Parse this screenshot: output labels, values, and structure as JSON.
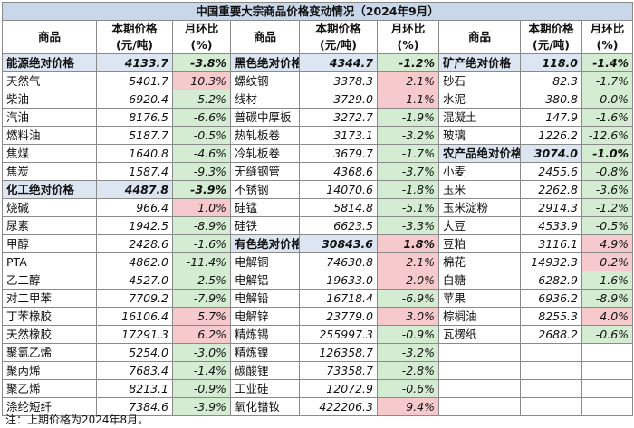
{
  "title": "中国重要大宗商品价格变动情况（2024年9月）",
  "headers": {
    "name": "商品",
    "price_line1": "本期价格",
    "price_line2": "(元/吨)",
    "mom_line1": "月环比",
    "mom_line2": "(%)"
  },
  "note": "注：上期价格为2024年8月。",
  "colors": {
    "title_bg": "#c9d7ea",
    "group_bg": "#dce6f2",
    "up_bg": "#f6c9cc",
    "down_bg": "#d3ecd2"
  },
  "rows": [
    [
      {
        "n": "能源绝对价格",
        "v": "4133.7",
        "c": "-3.8%",
        "g": true
      },
      {
        "n": "黑色绝对价格",
        "v": "4344.7",
        "c": "-1.2%",
        "g": true
      },
      {
        "n": "矿产绝对价格",
        "v": "118.0",
        "c": "-1.4%",
        "g": true
      }
    ],
    [
      {
        "n": "天然气",
        "v": "5401.7",
        "c": "10.3%"
      },
      {
        "n": "螺纹钢",
        "v": "3378.3",
        "c": "2.1%"
      },
      {
        "n": "砂石",
        "v": "82.3",
        "c": "-1.7%"
      }
    ],
    [
      {
        "n": "柴油",
        "v": "6920.4",
        "c": "-5.2%"
      },
      {
        "n": "线材",
        "v": "3729.0",
        "c": "1.1%"
      },
      {
        "n": "水泥",
        "v": "380.8",
        "c": "0.0%"
      }
    ],
    [
      {
        "n": "汽油",
        "v": "8176.5",
        "c": "-6.6%"
      },
      {
        "n": "普碳中厚板",
        "v": "3272.7",
        "c": "-1.9%"
      },
      {
        "n": "混凝土",
        "v": "147.9",
        "c": "-1.6%"
      }
    ],
    [
      {
        "n": "燃料油",
        "v": "5187.7",
        "c": "-0.5%"
      },
      {
        "n": "热轧板卷",
        "v": "3173.1",
        "c": "-3.2%"
      },
      {
        "n": "玻璃",
        "v": "1226.2",
        "c": "-12.6%"
      }
    ],
    [
      {
        "n": "焦煤",
        "v": "1640.8",
        "c": "-4.6%"
      },
      {
        "n": "冷轧板卷",
        "v": "3679.7",
        "c": "-1.7%"
      },
      {
        "n": "农产品绝对价格",
        "v": "3074.0",
        "c": "-1.0%",
        "g": true
      }
    ],
    [
      {
        "n": "焦炭",
        "v": "1587.4",
        "c": "-9.3%"
      },
      {
        "n": "无缝钢管",
        "v": "4368.6",
        "c": "-3.7%"
      },
      {
        "n": "小麦",
        "v": "2455.6",
        "c": "-0.8%"
      }
    ],
    [
      {
        "n": "化工绝对价格",
        "v": "4487.8",
        "c": "-3.9%",
        "g": true
      },
      {
        "n": "不锈钢",
        "v": "14070.6",
        "c": "-1.8%"
      },
      {
        "n": "玉米",
        "v": "2262.8",
        "c": "-3.6%"
      }
    ],
    [
      {
        "n": "烧碱",
        "v": "966.4",
        "c": "1.0%"
      },
      {
        "n": "硅锰",
        "v": "5814.8",
        "c": "-5.1%"
      },
      {
        "n": "玉米淀粉",
        "v": "2914.3",
        "c": "-1.2%"
      }
    ],
    [
      {
        "n": "尿素",
        "v": "1942.5",
        "c": "-8.9%"
      },
      {
        "n": "硅铁",
        "v": "6623.5",
        "c": "-3.3%"
      },
      {
        "n": "大豆",
        "v": "4533.9",
        "c": "-0.5%"
      }
    ],
    [
      {
        "n": "甲醇",
        "v": "2428.6",
        "c": "-1.6%"
      },
      {
        "n": "有色绝对价格",
        "v": "30843.6",
        "c": "1.8%",
        "g": true
      },
      {
        "n": "豆粕",
        "v": "3116.1",
        "c": "4.9%"
      }
    ],
    [
      {
        "n": "PTA",
        "v": "4862.0",
        "c": "-11.4%"
      },
      {
        "n": "电解铜",
        "v": "74630.8",
        "c": "2.1%"
      },
      {
        "n": "棉花",
        "v": "14932.3",
        "c": "0.2%"
      }
    ],
    [
      {
        "n": "乙二醇",
        "v": "4527.0",
        "c": "-2.5%"
      },
      {
        "n": "电解铝",
        "v": "19633.0",
        "c": "2.0%"
      },
      {
        "n": "白糖",
        "v": "6282.9",
        "c": "-1.6%"
      }
    ],
    [
      {
        "n": "对二甲苯",
        "v": "7709.2",
        "c": "-7.9%"
      },
      {
        "n": "电解铅",
        "v": "16718.4",
        "c": "-6.9%"
      },
      {
        "n": "苹果",
        "v": "6936.2",
        "c": "-8.9%"
      }
    ],
    [
      {
        "n": "丁苯橡胶",
        "v": "16106.4",
        "c": "5.7%"
      },
      {
        "n": "电解锌",
        "v": "23779.0",
        "c": "3.0%"
      },
      {
        "n": "棕榈油",
        "v": "8255.3",
        "c": "4.0%"
      }
    ],
    [
      {
        "n": "天然橡胶",
        "v": "17291.3",
        "c": "6.2%"
      },
      {
        "n": "精炼锡",
        "v": "255997.3",
        "c": "-0.9%"
      },
      {
        "n": "瓦楞纸",
        "v": "2688.2",
        "c": "-0.6%"
      }
    ],
    [
      {
        "n": "聚氯乙烯",
        "v": "5254.0",
        "c": "-3.0%"
      },
      {
        "n": "精炼镍",
        "v": "126358.7",
        "c": "-3.2%"
      },
      null
    ],
    [
      {
        "n": "聚丙烯",
        "v": "7683.4",
        "c": "-1.4%"
      },
      {
        "n": "碳酸锂",
        "v": "73358.7",
        "c": "-2.8%"
      },
      null
    ],
    [
      {
        "n": "聚乙烯",
        "v": "8213.1",
        "c": "-0.9%"
      },
      {
        "n": "工业硅",
        "v": "12072.9",
        "c": "-0.6%"
      },
      null
    ],
    [
      {
        "n": "涤纶短纤",
        "v": "7384.6",
        "c": "-3.9%"
      },
      {
        "n": "氧化镨钕",
        "v": "422206.3",
        "c": "9.4%"
      },
      null
    ]
  ]
}
